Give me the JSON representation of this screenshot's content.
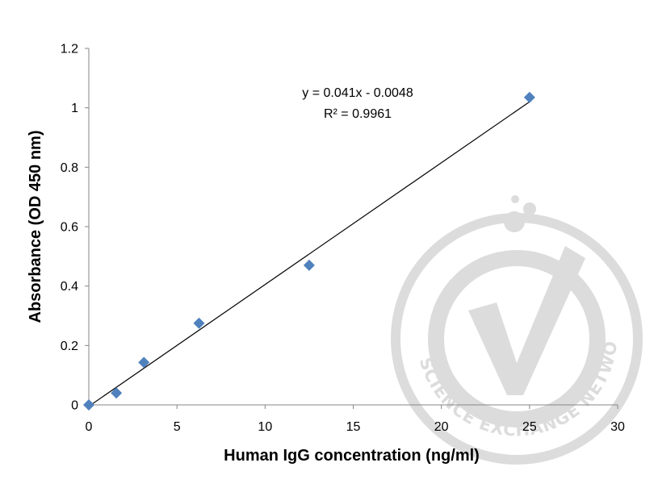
{
  "chart_data": {
    "type": "scatter",
    "xlabel": "Human IgG concentration (ng/ml)",
    "ylabel": "Absorbance (OD 450 nm)",
    "xlim": [
      0,
      30
    ],
    "ylim": [
      0,
      1.2
    ],
    "x_ticks": [
      "0",
      "5",
      "10",
      "15",
      "20",
      "25",
      "30"
    ],
    "y_ticks": [
      "0",
      "0.2",
      "0.4",
      "0.6",
      "0.8",
      "1",
      "1.2"
    ],
    "grid": false,
    "legend": "none",
    "series": [
      {
        "x": [
          0,
          1.5625,
          3.125,
          6.25,
          12.5,
          25
        ],
        "y": [
          0,
          0.04,
          0.143,
          0.275,
          0.47,
          1.035
        ],
        "color": "#4f81bd",
        "marker": "diamond"
      }
    ],
    "trendline": {
      "slope": 0.041,
      "intercept": -0.0048,
      "x_range": [
        0,
        25
      ],
      "color": "#000000"
    },
    "annotations": {
      "equation": "y = 0.041x - 0.0048",
      "r_squared": "R² = 0.9961"
    }
  },
  "watermark": {
    "text": "THE SCIENCE EXCHANGE NETWORK",
    "icon": "checkmark-seal-icon",
    "color": "#dcdcdc"
  }
}
